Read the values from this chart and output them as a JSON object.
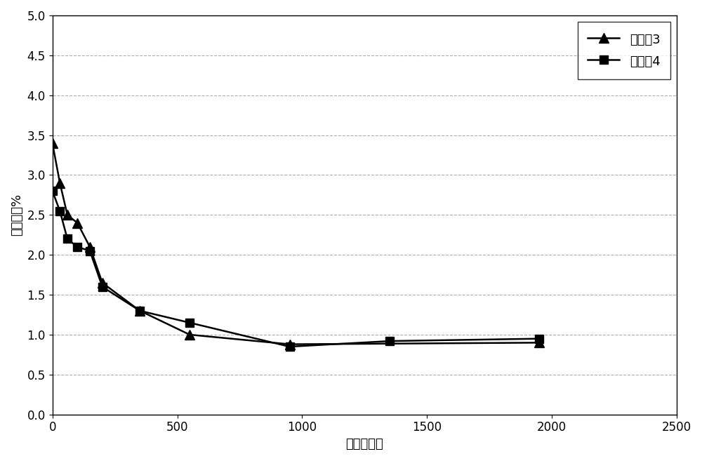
{
  "series1_label": "实施兩3",
  "series2_label": "实施兩4",
  "series1_x": [
    0,
    30,
    60,
    100,
    150,
    200,
    350,
    550,
    950,
    1950
  ],
  "series1_y": [
    3.4,
    2.9,
    2.5,
    2.4,
    2.1,
    1.65,
    1.3,
    1.0,
    0.88,
    0.9
  ],
  "series2_x": [
    0,
    30,
    60,
    100,
    150,
    200,
    350,
    550,
    950,
    1350,
    1950
  ],
  "series2_y": [
    2.8,
    2.55,
    2.2,
    2.1,
    2.05,
    1.6,
    1.3,
    1.15,
    0.85,
    0.92,
    0.95
  ],
  "xlabel": "蚀刻（秒）",
  "ylabel": "质量浓度%",
  "xlim": [
    0,
    2500
  ],
  "ylim": [
    0.0,
    5.0
  ],
  "xticks": [
    0,
    500,
    1000,
    1500,
    2000,
    2500
  ],
  "yticks": [
    0.0,
    0.5,
    1.0,
    1.5,
    2.0,
    2.5,
    3.0,
    3.5,
    4.0,
    4.5,
    5.0
  ],
  "line_color": "#000000",
  "grid_color": "#999999",
  "bg_color": "#ffffff",
  "axis_fontsize": 13,
  "tick_fontsize": 12,
  "legend_fontsize": 13
}
